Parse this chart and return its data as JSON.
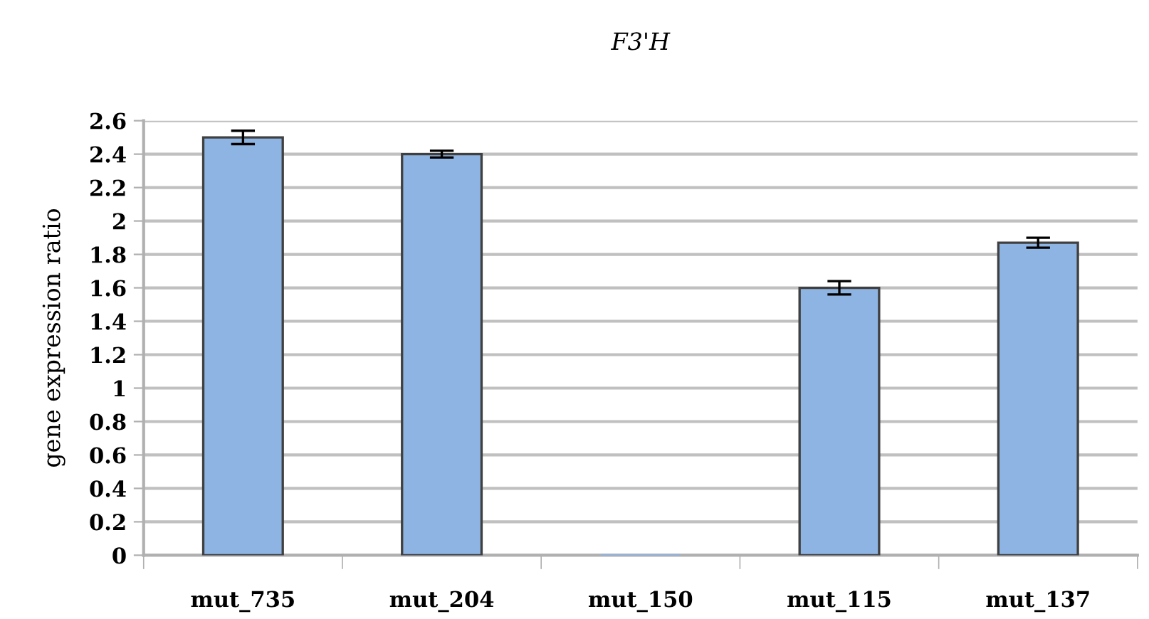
{
  "chart_data": {
    "type": "bar",
    "title": "F3'H",
    "ylabel": "gene expression ratio",
    "categories": [
      "mut_735",
      "mut_204",
      "mut_150",
      "mut_115",
      "mut_137"
    ],
    "values": [
      2.5,
      2.4,
      0,
      1.6,
      1.87
    ],
    "errors": [
      0.04,
      0.02,
      null,
      0.04,
      0.03
    ],
    "color": "#8eb4e3",
    "ylim": [
      0,
      2.6
    ],
    "yticks": [
      0,
      0.2,
      0.4,
      0.6,
      0.8,
      1,
      1.2,
      1.4,
      1.6,
      1.8,
      2,
      2.2,
      2.4,
      2.6
    ],
    "grid": "y"
  }
}
